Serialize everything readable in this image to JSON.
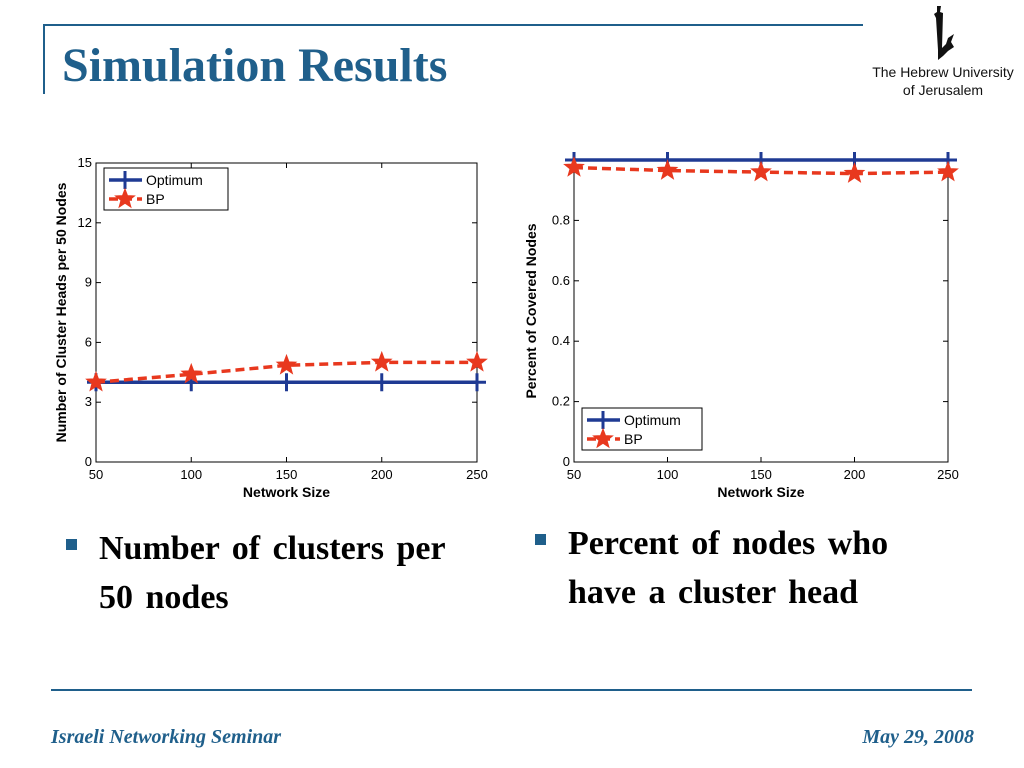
{
  "slide": {
    "title": "Simulation Results",
    "logo": {
      "line1": "The Hebrew University",
      "line2": "of Jerusalem"
    },
    "bullets": [
      "Number of clusters per 50 nodes",
      "Percent of nodes who have a cluster head"
    ],
    "footer": {
      "left": "Israeli Networking Seminar",
      "right": "May 29, 2008"
    }
  },
  "colors": {
    "accent": "#1f5f8b",
    "optimum": "#1f3a93",
    "bp": "#e8381e"
  },
  "chart_data": [
    {
      "type": "line",
      "title": "",
      "xlabel": "Network Size",
      "ylabel": "Number of Cluster Heads per 50 Nodes",
      "xlim": [
        50,
        250
      ],
      "ylim": [
        0,
        15
      ],
      "xticks": [
        50,
        100,
        150,
        200,
        250
      ],
      "yticks": [
        0,
        3,
        6,
        9,
        12,
        15
      ],
      "x": [
        50,
        100,
        150,
        200,
        250
      ],
      "legend_position": "top-left",
      "grid": false,
      "series": [
        {
          "name": "Optimum",
          "values": [
            4,
            4,
            4,
            4,
            4
          ],
          "color": "#1f3a93",
          "style": "solid",
          "marker": "plus"
        },
        {
          "name": "BP",
          "values": [
            4.0,
            4.4,
            4.85,
            5.0,
            5.0
          ],
          "color": "#e8381e",
          "style": "dashed",
          "marker": "star"
        }
      ]
    },
    {
      "type": "line",
      "title": "",
      "xlabel": "Network Size",
      "ylabel": "Percent of Covered Nodes",
      "xlim": [
        50,
        250
      ],
      "ylim": [
        0,
        1
      ],
      "xticks": [
        50,
        100,
        150,
        200,
        250
      ],
      "yticks": [
        0,
        0.2,
        0.4,
        0.6,
        0.8
      ],
      "x": [
        50,
        100,
        150,
        200,
        250
      ],
      "legend_position": "bottom-left",
      "grid": false,
      "series": [
        {
          "name": "Optimum",
          "values": [
            1.0,
            1.0,
            1.0,
            1.0,
            1.0
          ],
          "color": "#1f3a93",
          "style": "solid",
          "marker": "plus"
        },
        {
          "name": "BP",
          "values": [
            0.975,
            0.965,
            0.96,
            0.955,
            0.96
          ],
          "color": "#e8381e",
          "style": "dashed",
          "marker": "star"
        }
      ]
    }
  ]
}
